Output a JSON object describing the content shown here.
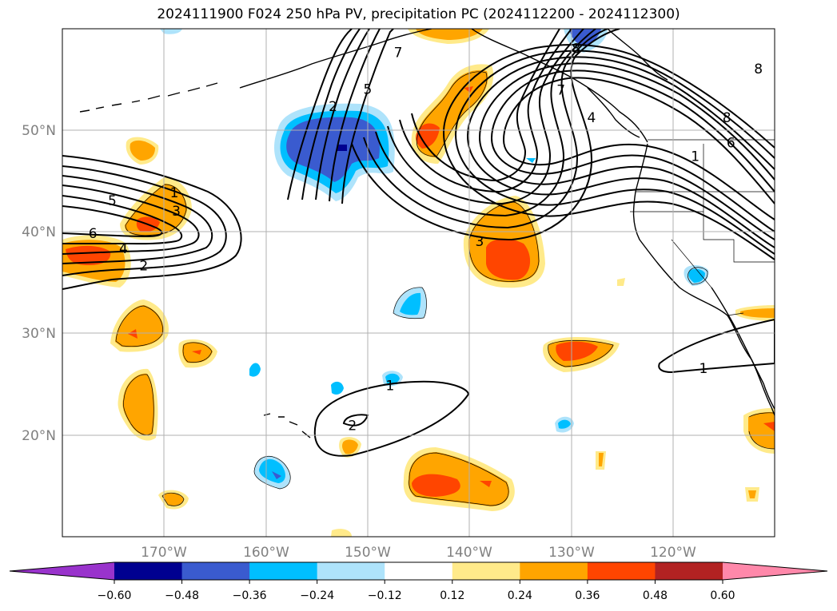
{
  "title": "2024111900 F024 250 hPa PV, precipitation PC (2024112200 - 2024112300)",
  "map": {
    "lat_labels": [
      "50°N",
      "40°N",
      "30°N",
      "20°N"
    ],
    "lon_labels": [
      "170°W",
      "160°W",
      "150°W",
      "140°W",
      "130°W",
      "120°W"
    ],
    "lat_ticks": [
      50,
      40,
      30,
      20
    ],
    "lon_ticks": [
      -170,
      -160,
      -150,
      -140,
      -130,
      -120
    ],
    "extent": {
      "lon": [
        -180,
        -110
      ],
      "lat": [
        10,
        60
      ]
    },
    "grid": true
  },
  "colorbar": {
    "ticks": [
      "−0.60",
      "−0.48",
      "−0.36",
      "−0.24",
      "−0.12",
      "0.12",
      "0.24",
      "0.36",
      "0.48",
      "0.60"
    ],
    "colors": {
      "under": "#9933cc",
      "bins": [
        "#000090",
        "#3a5bcf",
        "#00bfff",
        "#aee3fb",
        "#ffffff",
        "#ffea8a",
        "#ffa500",
        "#ff4500",
        "#b22222"
      ],
      "over": "#ff88aa"
    }
  },
  "contour_labels": [
    {
      "text": "1",
      "lon": -169,
      "lat": 43.8
    },
    {
      "text": "3",
      "lon": -168.8,
      "lat": 42
    },
    {
      "text": "5",
      "lon": -175.1,
      "lat": 43
    },
    {
      "text": "6",
      "lon": -177,
      "lat": 39.8
    },
    {
      "text": "4",
      "lon": -174,
      "lat": 38.3
    },
    {
      "text": "2",
      "lon": -172,
      "lat": 36.6
    },
    {
      "text": "2",
      "lon": -153.4,
      "lat": 52.3
    },
    {
      "text": "5",
      "lon": -150,
      "lat": 54
    },
    {
      "text": "7",
      "lon": -147,
      "lat": 57.6
    },
    {
      "text": "3",
      "lon": -139,
      "lat": 39
    },
    {
      "text": "8",
      "lon": -129.5,
      "lat": 58
    },
    {
      "text": "7",
      "lon": -131,
      "lat": 53.9
    },
    {
      "text": "4",
      "lon": -128,
      "lat": 51.2
    },
    {
      "text": "8",
      "lon": -111.6,
      "lat": 56
    },
    {
      "text": "8",
      "lon": -114.7,
      "lat": 51.2
    },
    {
      "text": "6",
      "lon": -114.3,
      "lat": 48.7
    },
    {
      "text": "1",
      "lon": -117.8,
      "lat": 47.4
    },
    {
      "text": "1",
      "lon": -147.8,
      "lat": 24.8
    },
    {
      "text": "2",
      "lon": -151.5,
      "lat": 20.9
    },
    {
      "text": "1",
      "lon": -117,
      "lat": 26.5
    }
  ]
}
